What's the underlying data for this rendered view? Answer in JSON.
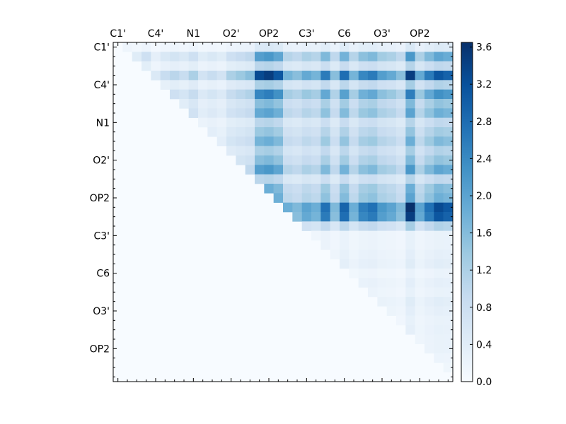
{
  "chart_data": {
    "type": "heatmap",
    "x_tick_labels": [
      "C1'",
      "C4'",
      "N1",
      "O2'",
      "OP2",
      "C3'",
      "C6",
      "O3'",
      "OP2"
    ],
    "y_tick_labels": [
      "C1'",
      "C4'",
      "N1",
      "O2'",
      "OP2",
      "C3'",
      "C6",
      "O3'",
      "OP2"
    ],
    "grid_size": 36,
    "colormap": "Blues",
    "colormap_stops": [
      "#f7fbff",
      "#deebf7",
      "#c6dbef",
      "#9ecae1",
      "#6baed6",
      "#4292c6",
      "#2171b5",
      "#08519c",
      "#08306b"
    ],
    "vmin": 0.0,
    "vmax": 3.65,
    "colorbar_ticks": [
      "0.0",
      "0.4",
      "0.8",
      "1.2",
      "1.6",
      "2.0",
      "2.4",
      "2.8",
      "3.2",
      "3.6"
    ],
    "grid": false,
    "note_values": "approximate cell values read from the heatmap; upper triangle only",
    "row_profile": [
      0.15,
      0.6,
      0.3,
      0.95,
      0.35,
      0.7,
      0.45,
      0.55,
      0.3,
      0.4,
      0.5,
      0.35,
      0.45,
      0.6,
      0.3,
      0.5,
      0.55,
      1.0,
      0.95,
      0.35,
      0.08,
      0.08,
      0.1,
      0.12,
      0.07,
      0.1,
      0.08,
      0.12,
      0.1,
      0.08,
      0.09,
      0.08,
      0.08,
      0.06,
      0.05,
      0.05
    ],
    "col_profile": [
      0.1,
      0.3,
      0.2,
      0.35,
      0.15,
      0.25,
      0.3,
      0.25,
      0.35,
      0.2,
      0.25,
      0.2,
      0.35,
      0.4,
      0.45,
      0.95,
      1.0,
      0.9,
      0.5,
      0.45,
      0.55,
      0.5,
      0.75,
      0.45,
      0.8,
      0.5,
      0.7,
      0.75,
      0.6,
      0.55,
      0.45,
      1.0,
      0.55,
      0.75,
      0.9,
      0.85
    ],
    "scale": 3.65
  }
}
